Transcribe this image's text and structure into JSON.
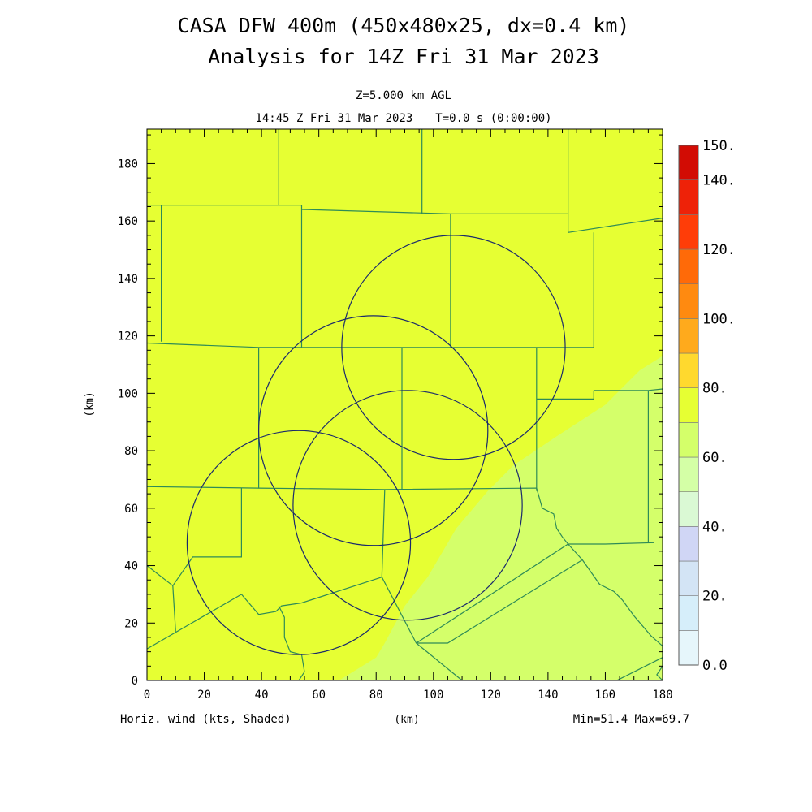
{
  "header": {
    "title_line1": "CASA DFW 400m (450x480x25, dx=0.4 km)",
    "title_line2": "Analysis for 14Z Fri 31 Mar 2023",
    "level": "Z=5.000 km AGL",
    "valid_time": "14:45 Z Fri 31 Mar 2023",
    "model_time": "T=0.0 s (0:00:00)"
  },
  "footer": {
    "field_label": "Horiz. wind (kts, Shaded)",
    "x_unit": "(km)",
    "minmax": "Min=51.4 Max=69.7"
  },
  "chart_data": {
    "type": "heatmap",
    "field": "Horiz. wind (kts, Shaded)",
    "xlim": [
      0,
      180
    ],
    "ylim": [
      0,
      192
    ],
    "x_ticks": [
      0,
      20,
      40,
      60,
      80,
      100,
      120,
      140,
      160,
      180
    ],
    "y_ticks": [
      0,
      20,
      40,
      60,
      80,
      100,
      120,
      140,
      160,
      180
    ],
    "ylabel": "(km)",
    "xlabel": "(km)",
    "min": 51.4,
    "max": 69.7,
    "regions": [
      {
        "band": "60-70",
        "color": "#e6ff33",
        "description": "northwest / central"
      },
      {
        "band": "50-60",
        "color": "#d4ff6a",
        "description": "southeast"
      }
    ],
    "colorbar": {
      "levels": [
        0,
        10,
        20,
        30,
        40,
        50,
        60,
        70,
        80,
        90,
        100,
        110,
        120,
        130,
        140,
        150
      ],
      "colors": [
        "#e6f6fb",
        "#d6eefa",
        "#d3e4f5",
        "#d0d6f5",
        "#daf9d4",
        "#d4ffa6",
        "#d4ff6a",
        "#e6ff33",
        "#ffd92e",
        "#ffaa1c",
        "#ff8a10",
        "#ff6a08",
        "#ff3d08",
        "#ee2208",
        "#d20c04"
      ],
      "labels": [
        "0.0",
        "20.",
        "40.",
        "60.",
        "80.",
        "100.",
        "120.",
        "140.",
        "150."
      ],
      "label_values": [
        0,
        20,
        40,
        60,
        80,
        100,
        120,
        140,
        150
      ]
    },
    "radar_rings": [
      {
        "cx": 107,
        "cy": 116,
        "r": 39
      },
      {
        "cx": 79,
        "cy": 87,
        "r": 40
      },
      {
        "cx": 91,
        "cy": 61,
        "r": 40
      },
      {
        "cx": 53,
        "cy": 48,
        "r": 39
      }
    ],
    "county_lines": [
      [
        [
          0,
          165.5
        ],
        [
          5,
          165.5
        ],
        [
          5,
          118
        ]
      ],
      [
        [
          0,
          117.5
        ],
        [
          39,
          116
        ],
        [
          89,
          116
        ],
        [
          136,
          116
        ],
        [
          156,
          116
        ]
      ],
      [
        [
          46,
          192
        ],
        [
          46,
          165.5
        ]
      ],
      [
        [
          5,
          165.5
        ],
        [
          54,
          165.5
        ],
        [
          54,
          116
        ]
      ],
      [
        [
          54,
          164
        ],
        [
          106,
          162.5
        ],
        [
          106,
          116
        ]
      ],
      [
        [
          96,
          192
        ],
        [
          96,
          162.5
        ]
      ],
      [
        [
          106,
          162.5
        ],
        [
          147,
          162.5
        ]
      ],
      [
        [
          147,
          192
        ],
        [
          147,
          156
        ],
        [
          180,
          161
        ]
      ],
      [
        [
          156,
          156
        ],
        [
          156,
          116
        ]
      ],
      [
        [
          156,
          101
        ],
        [
          175,
          101
        ],
        [
          180,
          101.5
        ]
      ],
      [
        [
          39,
          116
        ],
        [
          39,
          67
        ],
        [
          0,
          67.5
        ]
      ],
      [
        [
          89,
          116
        ],
        [
          89,
          66.5
        ]
      ],
      [
        [
          39,
          67
        ],
        [
          83,
          66.5
        ],
        [
          136,
          67
        ]
      ],
      [
        [
          136,
          116
        ],
        [
          136,
          66
        ]
      ],
      [
        [
          136,
          98
        ],
        [
          156,
          98
        ],
        [
          156,
          101
        ]
      ],
      [
        [
          33,
          67
        ],
        [
          33,
          43
        ],
        [
          16,
          43
        ],
        [
          9,
          33
        ],
        [
          0,
          40
        ]
      ],
      [
        [
          9,
          33
        ],
        [
          10,
          17
        ]
      ],
      [
        [
          33,
          30
        ],
        [
          0,
          11
        ]
      ],
      [
        [
          33,
          30
        ],
        [
          39,
          23
        ],
        [
          45,
          24
        ],
        [
          47,
          26
        ],
        [
          54,
          27
        ],
        [
          82,
          36
        ],
        [
          94,
          13
        ],
        [
          110,
          0
        ]
      ],
      [
        [
          46,
          26
        ],
        [
          48,
          22
        ],
        [
          48,
          15
        ],
        [
          50,
          10
        ],
        [
          54,
          9
        ],
        [
          55,
          3
        ],
        [
          53,
          0
        ]
      ],
      [
        [
          83,
          66.5
        ],
        [
          82,
          36
        ]
      ],
      [
        [
          136,
          67
        ],
        [
          138,
          60
        ],
        [
          142,
          58
        ],
        [
          143,
          53
        ],
        [
          145,
          50
        ],
        [
          147,
          47.5
        ],
        [
          160,
          47.5
        ],
        [
          177,
          48
        ]
      ],
      [
        [
          147,
          47.5
        ],
        [
          152,
          42
        ],
        [
          158,
          33.5
        ],
        [
          163,
          31
        ],
        [
          166,
          28
        ],
        [
          170,
          22.5
        ],
        [
          176,
          15.5
        ],
        [
          180,
          12
        ],
        [
          180,
          5
        ],
        [
          178,
          2
        ],
        [
          180,
          0
        ]
      ],
      [
        [
          175,
          101
        ],
        [
          175,
          48
        ]
      ],
      [
        [
          147,
          47.5
        ],
        [
          94,
          13
        ]
      ],
      [
        [
          152,
          42
        ],
        [
          105,
          13
        ],
        [
          94,
          13
        ]
      ],
      [
        [
          180,
          8
        ],
        [
          164,
          0
        ]
      ]
    ],
    "speed_boundary": [
      [
        67,
        0
      ],
      [
        80,
        8
      ],
      [
        83,
        13
      ],
      [
        90,
        26
      ],
      [
        98,
        36
      ],
      [
        108,
        53
      ],
      [
        119,
        66
      ],
      [
        128,
        75
      ],
      [
        143,
        85
      ],
      [
        160,
        96
      ],
      [
        172,
        108
      ],
      [
        180,
        113
      ]
    ]
  }
}
